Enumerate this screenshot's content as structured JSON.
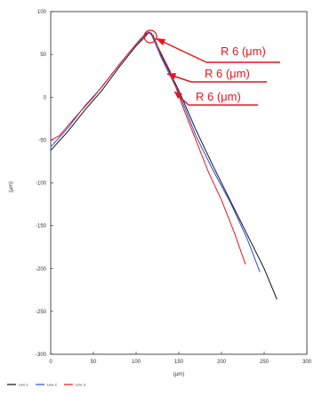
{
  "chart_data": {
    "type": "line",
    "title": "",
    "xlabel": "(μm)",
    "ylabel": "(μm)",
    "xlim": [
      0,
      300
    ],
    "ylim": [
      -300,
      100
    ],
    "x_ticks": [
      "0",
      "50",
      "100",
      "150",
      "200",
      "250",
      "300"
    ],
    "y_ticks": [
      "100",
      "50",
      "0",
      "-50",
      "-100",
      "-150",
      "-200",
      "-250",
      "-300"
    ],
    "grid": false,
    "legend_position": "bottom-left",
    "series": [
      {
        "name": "Line 1",
        "color": "#111111",
        "points": [
          [
            0,
            -62
          ],
          [
            20,
            -40
          ],
          [
            40,
            -15
          ],
          [
            60,
            8
          ],
          [
            80,
            35
          ],
          [
            100,
            60
          ],
          [
            110,
            70
          ],
          [
            115,
            76
          ],
          [
            120,
            72
          ],
          [
            130,
            48
          ],
          [
            150,
            8
          ],
          [
            170,
            -38
          ],
          [
            190,
            -80
          ],
          [
            210,
            -120
          ],
          [
            230,
            -160
          ],
          [
            250,
            -200
          ],
          [
            265,
            -236
          ]
        ]
      },
      {
        "name": "Line 2",
        "color": "#2b4cd8",
        "points": [
          [
            0,
            -58
          ],
          [
            20,
            -36
          ],
          [
            40,
            -10
          ],
          [
            60,
            12
          ],
          [
            80,
            38
          ],
          [
            100,
            62
          ],
          [
            110,
            72
          ],
          [
            114,
            76
          ],
          [
            118,
            73
          ],
          [
            130,
            45
          ],
          [
            150,
            5
          ],
          [
            170,
            -45
          ],
          [
            190,
            -85
          ],
          [
            210,
            -122
          ],
          [
            230,
            -165
          ],
          [
            245,
            -204
          ]
        ]
      },
      {
        "name": "Line 3",
        "color": "#e8141c",
        "points": [
          [
            0,
            -50
          ],
          [
            10,
            -45
          ],
          [
            30,
            -22
          ],
          [
            50,
            0
          ],
          [
            70,
            25
          ],
          [
            90,
            50
          ],
          [
            105,
            68
          ],
          [
            112,
            75
          ],
          [
            118,
            75
          ],
          [
            125,
            60
          ],
          [
            140,
            30
          ],
          [
            155,
            -12
          ],
          [
            170,
            -50
          ],
          [
            185,
            -88
          ],
          [
            200,
            -120
          ],
          [
            215,
            -158
          ],
          [
            228,
            -195
          ]
        ]
      }
    ],
    "annotations": [
      "R 6 (μm)",
      "R 6 (μm)",
      "R 6 (μm)"
    ]
  }
}
